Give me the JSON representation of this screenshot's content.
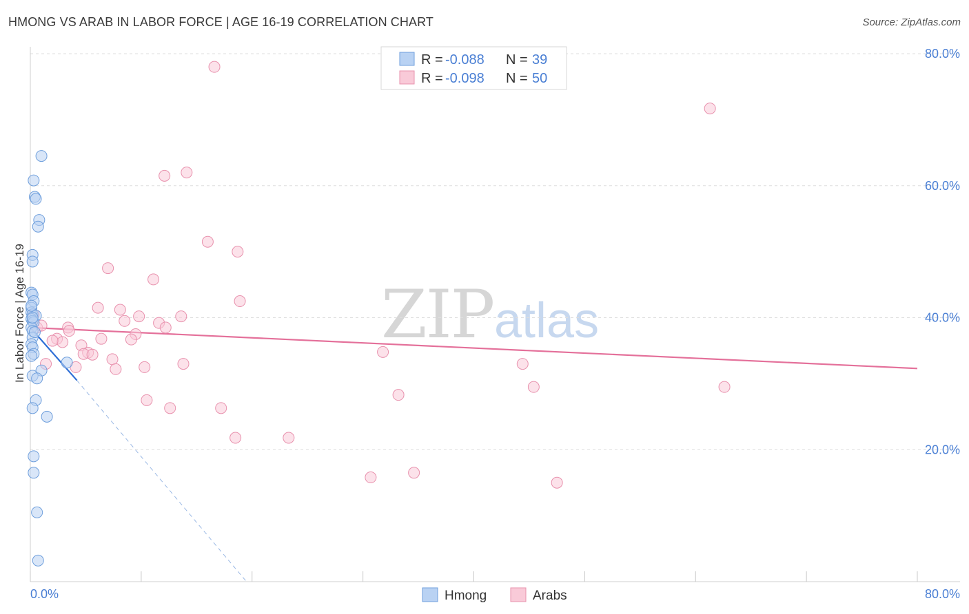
{
  "title": "HMONG VS ARAB IN LABOR FORCE | AGE 16-19 CORRELATION CHART",
  "source": "Source: ZipAtlas.com",
  "watermark": {
    "zip": "ZIP",
    "atlas": "atlas"
  },
  "colors": {
    "hmong_fill": "#b9d2f3",
    "hmong_stroke": "#6f9fdc",
    "hmong_line": "#2f6fd6",
    "arab_fill": "#f9cad8",
    "arab_stroke": "#e891ad",
    "arab_line": "#e4709a",
    "accent_text": "#4a7fd4",
    "grid": "#dedede"
  },
  "legend": {
    "rows": [
      {
        "series": "Hmong",
        "r_label": "R =",
        "r_value": "-0.088",
        "n_label": "N =",
        "n_value": "39"
      },
      {
        "series": "Arabs",
        "r_label": "R =",
        "r_value": "-0.098",
        "n_label": "N =",
        "n_value": "50"
      }
    ]
  },
  "chart_data": {
    "type": "scatter",
    "title": "HMONG VS ARAB IN LABOR FORCE | AGE 16-19 CORRELATION CHART",
    "ylabel": "In Labor Force | Age 16-19",
    "xlabel": "",
    "xlim": [
      0,
      80
    ],
    "ylim": [
      0,
      80
    ],
    "x_ticks": [
      "0.0%",
      "80.0%"
    ],
    "y_ticks": [
      "20.0%",
      "40.0%",
      "60.0%",
      "80.0%"
    ],
    "grid": true,
    "legend_position": "bottom-center",
    "series": [
      {
        "name": "Hmong",
        "color": "#6f9fdc",
        "points": [
          [
            1.0,
            64.5
          ],
          [
            0.3,
            60.8
          ],
          [
            0.4,
            58.3
          ],
          [
            0.5,
            58.0
          ],
          [
            0.8,
            54.8
          ],
          [
            0.7,
            53.8
          ],
          [
            0.2,
            49.5
          ],
          [
            0.2,
            48.5
          ],
          [
            0.1,
            43.8
          ],
          [
            0.2,
            43.5
          ],
          [
            0.3,
            42.5
          ],
          [
            0.1,
            41.5
          ],
          [
            0.1,
            40.8
          ],
          [
            0.2,
            40.5
          ],
          [
            0.5,
            40.3
          ],
          [
            0.1,
            39.8
          ],
          [
            0.2,
            39.5
          ],
          [
            0.3,
            39.3
          ],
          [
            0.1,
            38.5
          ],
          [
            0.2,
            38.0
          ],
          [
            0.2,
            37.0
          ],
          [
            0.1,
            36.0
          ],
          [
            0.2,
            35.5
          ],
          [
            0.3,
            34.5
          ],
          [
            0.1,
            34.2
          ],
          [
            3.3,
            33.2
          ],
          [
            1.0,
            32.0
          ],
          [
            0.2,
            31.2
          ],
          [
            0.6,
            30.8
          ],
          [
            0.5,
            27.5
          ],
          [
            0.2,
            26.3
          ],
          [
            1.5,
            25.0
          ],
          [
            0.3,
            19.0
          ],
          [
            0.3,
            16.5
          ],
          [
            0.6,
            10.5
          ],
          [
            0.7,
            3.2
          ],
          [
            0.2,
            40.0
          ],
          [
            0.4,
            37.8
          ],
          [
            0.1,
            41.8
          ]
        ],
        "trend": {
          "x0": 0,
          "y0": 38.5,
          "x1": 4.2,
          "y1": 30.5,
          "dashed_to": {
            "x": 19.5,
            "y": 0
          }
        }
      },
      {
        "name": "Arabs",
        "color": "#e891ad",
        "points": [
          [
            16.6,
            78.0
          ],
          [
            61.3,
            71.7
          ],
          [
            14.1,
            62.0
          ],
          [
            12.1,
            61.5
          ],
          [
            16.0,
            51.5
          ],
          [
            18.7,
            50.0
          ],
          [
            7.0,
            47.5
          ],
          [
            11.1,
            45.8
          ],
          [
            18.9,
            42.5
          ],
          [
            6.1,
            41.5
          ],
          [
            8.1,
            41.2
          ],
          [
            9.8,
            40.2
          ],
          [
            13.6,
            40.2
          ],
          [
            8.5,
            39.5
          ],
          [
            11.6,
            39.2
          ],
          [
            12.2,
            38.5
          ],
          [
            3.4,
            38.5
          ],
          [
            3.5,
            38.0
          ],
          [
            0.6,
            38.5
          ],
          [
            9.5,
            37.5
          ],
          [
            2.4,
            36.8
          ],
          [
            6.4,
            36.8
          ],
          [
            9.1,
            36.7
          ],
          [
            2.9,
            36.3
          ],
          [
            2.0,
            36.5
          ],
          [
            4.6,
            35.8
          ],
          [
            5.2,
            34.7
          ],
          [
            4.8,
            34.5
          ],
          [
            5.6,
            34.4
          ],
          [
            31.8,
            34.8
          ],
          [
            7.4,
            33.7
          ],
          [
            13.8,
            33.0
          ],
          [
            44.4,
            33.0
          ],
          [
            1.4,
            33.0
          ],
          [
            10.3,
            32.5
          ],
          [
            7.7,
            32.2
          ],
          [
            4.1,
            32.5
          ],
          [
            45.4,
            29.5
          ],
          [
            62.6,
            29.5
          ],
          [
            33.2,
            28.3
          ],
          [
            10.5,
            27.5
          ],
          [
            12.6,
            26.3
          ],
          [
            17.2,
            26.3
          ],
          [
            18.5,
            21.8
          ],
          [
            23.3,
            21.8
          ],
          [
            34.6,
            16.5
          ],
          [
            30.7,
            15.8
          ],
          [
            47.5,
            15.0
          ],
          [
            0.3,
            40.5
          ],
          [
            1.0,
            38.8
          ]
        ],
        "trend": {
          "x0": 0,
          "y0": 38.5,
          "x1": 80,
          "y1": 32.3
        }
      }
    ]
  }
}
